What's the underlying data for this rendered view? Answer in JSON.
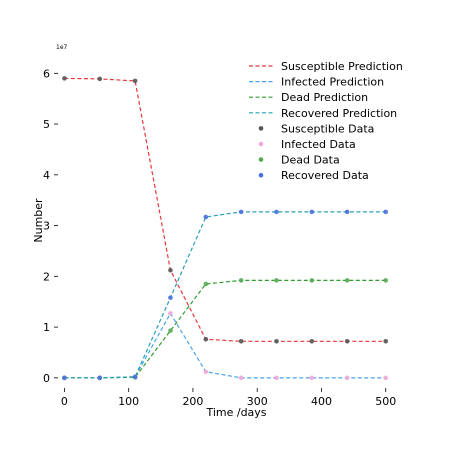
{
  "chart_data": {
    "type": "line",
    "xlabel": "Time /days",
    "ylabel": "Number",
    "y_offset_label": "1e7",
    "xlim": [
      -10,
      530
    ],
    "ylim": [
      -0.2,
      6.4
    ],
    "x_ticks": [
      0,
      100,
      200,
      300,
      400,
      500
    ],
    "y_ticks": [
      0,
      1,
      2,
      3,
      4,
      5,
      6
    ],
    "grid": false,
    "legend_position": "top-right",
    "x": [
      0,
      55,
      110,
      165,
      220,
      275,
      330,
      385,
      440,
      500
    ],
    "series": [
      {
        "name": "Susceptible Prediction",
        "kind": "line",
        "color": "#e8383b",
        "values": [
          5.9,
          5.89,
          5.85,
          2.12,
          0.76,
          0.72,
          0.72,
          0.72,
          0.72,
          0.72
        ]
      },
      {
        "name": "Infected Prediction",
        "kind": "line",
        "color": "#4aa3f0",
        "values": [
          0.0,
          0.0,
          0.02,
          1.27,
          0.12,
          0.0,
          0.0,
          0.0,
          0.0,
          0.0
        ]
      },
      {
        "name": "Dead Prediction",
        "kind": "line",
        "color": "#2f9e2f",
        "values": [
          0.0,
          0.0,
          0.01,
          0.93,
          1.85,
          1.92,
          1.92,
          1.92,
          1.92,
          1.92
        ]
      },
      {
        "name": "Recovered Prediction",
        "kind": "line",
        "color": "#2a9fb4",
        "values": [
          0.0,
          0.0,
          0.02,
          1.58,
          3.17,
          3.27,
          3.27,
          3.27,
          3.27,
          3.27
        ]
      },
      {
        "name": "Susceptible Data",
        "kind": "scatter",
        "color": "#555555",
        "values": [
          5.9,
          5.89,
          5.85,
          2.12,
          0.76,
          0.72,
          0.72,
          0.72,
          0.72,
          0.72
        ]
      },
      {
        "name": "Infected Data",
        "kind": "scatter",
        "color": "#f0a8d8",
        "values": [
          0.0,
          0.0,
          0.02,
          1.27,
          0.12,
          0.0,
          0.0,
          0.0,
          0.0,
          0.0
        ]
      },
      {
        "name": "Dead Data",
        "kind": "scatter",
        "color": "#55aa55",
        "values": [
          0.0,
          0.0,
          0.01,
          0.93,
          1.85,
          1.92,
          1.92,
          1.92,
          1.92,
          1.92
        ]
      },
      {
        "name": "Recovered Data",
        "kind": "scatter",
        "color": "#4a6fe0",
        "values": [
          0.0,
          0.0,
          0.02,
          1.58,
          3.17,
          3.27,
          3.27,
          3.27,
          3.27,
          3.27
        ]
      }
    ]
  }
}
